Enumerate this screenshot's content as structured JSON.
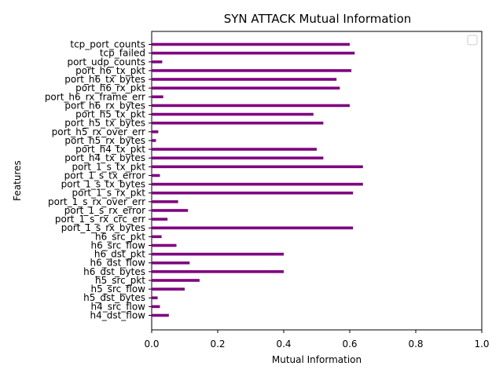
{
  "chart_data": {
    "type": "bar",
    "orientation": "horizontal",
    "title": "SYN ATTACK Mutual Information",
    "xlabel": "Mutual Information",
    "ylabel": "Features",
    "xlim": [
      0,
      1.0
    ],
    "xticks": [
      "0.0",
      "0.2",
      "0.4",
      "0.6",
      "0.8",
      "1.0"
    ],
    "grid": false,
    "legend": {
      "placement": "upper-right",
      "entries": []
    },
    "bar_color": "#800080",
    "categories": [
      "tcp_port_counts",
      "tcp_failed",
      "port_udp_counts",
      "port_h6_tx_pkt",
      "port_h6_tx_bytes",
      "port_h6_rx_pkt",
      "port_h6_rx_frame_err",
      "port_h6_rx_bytes",
      "port_h5_tx_pkt",
      "port_h5_tx_bytes",
      "port_h5_rx_over_err",
      "port_h5_rx_bytes",
      "port_h4_tx_pkt",
      "port_h4_tx_bytes",
      "port_1_s_tx_pkt",
      "port_1_s_tx_error",
      "port_1_s_tx_bytes",
      "port_1_s_rx_pkt",
      "port_1_s_rx_over_err",
      "port_1_s_rx_error",
      "port_1_s_rx_crc_err",
      "port_1_s_rx_bytes",
      "h6_src_pkt",
      "h6_src_flow",
      "h6_dst_pkt",
      "h6_dst_flow",
      "h6_dst_bytes",
      "h5_src_pkt",
      "h5_src_flow",
      "h5_dst_bytes",
      "h4_src_flow",
      "h4_dst_flow"
    ],
    "values": [
      0.6,
      0.615,
      0.032,
      0.605,
      0.56,
      0.57,
      0.035,
      0.6,
      0.49,
      0.52,
      0.02,
      0.013,
      0.5,
      0.52,
      0.64,
      0.025,
      0.64,
      0.61,
      0.08,
      0.11,
      0.048,
      0.61,
      0.03,
      0.075,
      0.4,
      0.115,
      0.4,
      0.145,
      0.1,
      0.018,
      0.025,
      0.052
    ]
  }
}
